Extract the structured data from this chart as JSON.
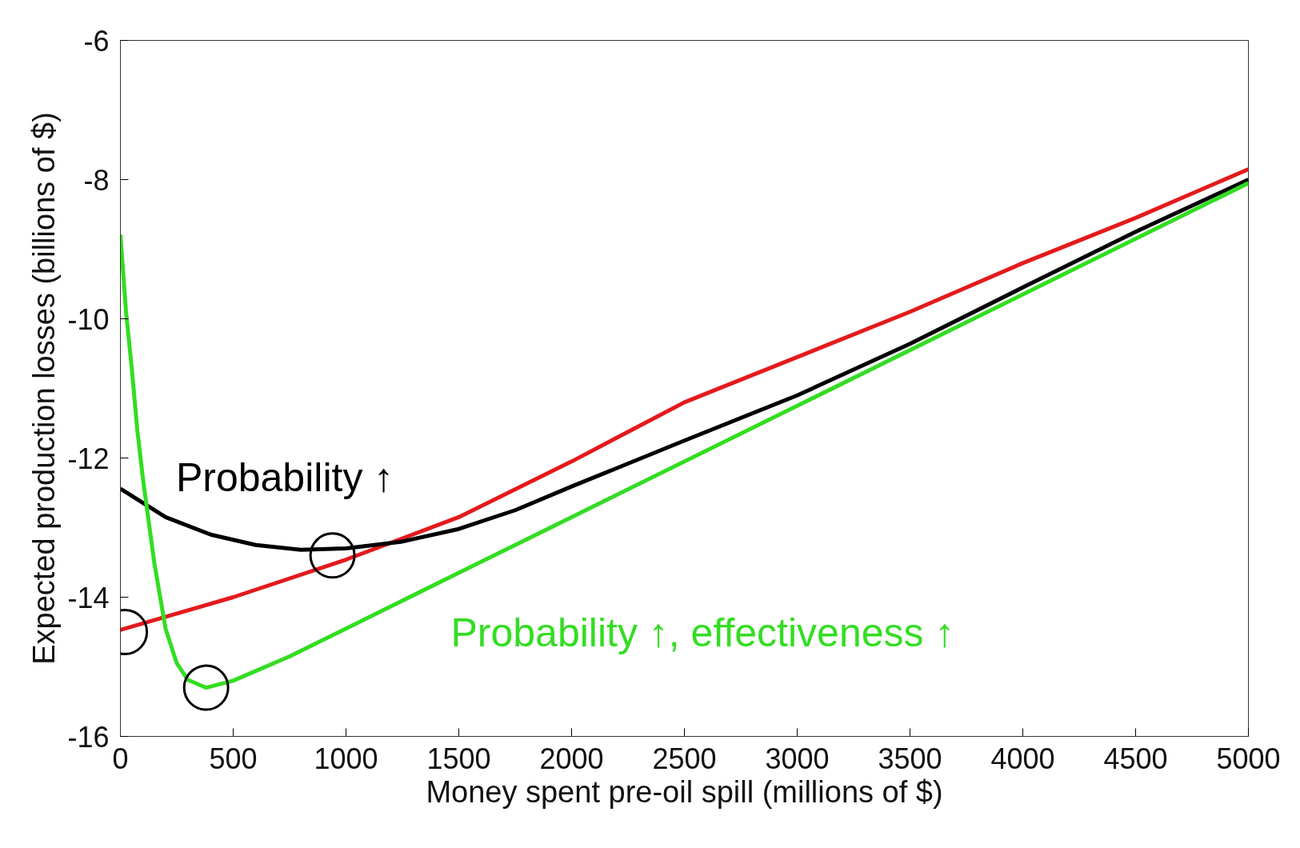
{
  "chart_data": {
    "type": "line",
    "xlabel": "Money spent pre-oil spill (millions of $)",
    "ylabel": "Expected production losses (billions of $)",
    "xlim": [
      0,
      5000
    ],
    "ylim": [
      -16,
      -6
    ],
    "xticks": [
      0,
      500,
      1000,
      1500,
      2000,
      2500,
      3000,
      3500,
      4000,
      4500,
      5000
    ],
    "yticks": [
      -16,
      -14,
      -12,
      -10,
      -8,
      -6
    ],
    "grid": false,
    "line_style": "solid",
    "marker": "none",
    "series": [
      {
        "color": "#e41a1c",
        "x": [
          0,
          500,
          1000,
          1500,
          2000,
          2500,
          3000,
          3500,
          4000,
          4500,
          5000
        ],
        "values": [
          -14.47,
          -14.0,
          -13.46,
          -12.85,
          -12.05,
          -11.2,
          -10.55,
          -9.9,
          -9.2,
          -8.55,
          -7.85
        ]
      },
      {
        "name": "Probability ↑",
        "color": "#000000",
        "x": [
          0,
          200,
          400,
          600,
          800,
          1000,
          1250,
          1500,
          1750,
          2000,
          2500,
          3000,
          3500,
          4000,
          4500,
          5000
        ],
        "values": [
          -12.44,
          -12.85,
          -13.1,
          -13.25,
          -13.32,
          -13.3,
          -13.2,
          -13.02,
          -12.75,
          -12.41,
          -11.75,
          -11.1,
          -10.36,
          -9.55,
          -8.75,
          -8.0
        ]
      },
      {
        "name": "Probability ↑, effectiveness ↑",
        "color": "#33dd22",
        "x": [
          0,
          25,
          50,
          75,
          100,
          150,
          200,
          250,
          300,
          380,
          500,
          750,
          1000,
          1500,
          2000,
          3000,
          4000,
          5000
        ],
        "values": [
          -8.79,
          -9.9,
          -10.7,
          -11.6,
          -12.3,
          -13.5,
          -14.45,
          -14.95,
          -15.19,
          -15.3,
          -15.2,
          -14.85,
          -14.45,
          -13.65,
          -12.85,
          -11.25,
          -9.65,
          -8.05
        ]
      },
      {
        "type": "scatter",
        "marker": "circle",
        "color": "#000000",
        "x": [
          20,
          380,
          940
        ],
        "values": [
          -14.5,
          -15.3,
          -13.4
        ]
      }
    ]
  }
}
